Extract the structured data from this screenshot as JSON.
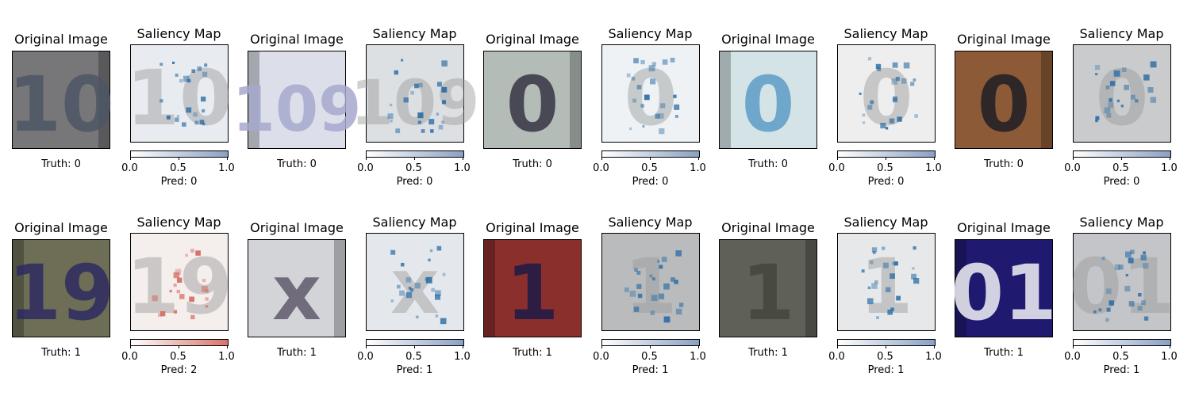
{
  "labels": {
    "original_title": "Original Image",
    "saliency_title": "Saliency Map",
    "truth_prefix": "Truth: ",
    "pred_prefix": "Pred: ",
    "cbar_ticks": [
      "0.0",
      "0.5",
      "1.0"
    ]
  },
  "colors": {
    "blue_cmap_end": "#8aa0c4",
    "red_cmap_end": "#d9736b"
  },
  "rows": [
    {
      "pairs": [
        {
          "truth": "0",
          "pred": "0",
          "digits": "10",
          "bg": "#77777a",
          "fg": "#4d5565",
          "cmap": "blue",
          "sal_bg": "#e8ecf0"
        },
        {
          "truth": "0",
          "pred": "0",
          "digits": "109",
          "bg": "#dcdfea",
          "fg": "#a7a9ce",
          "cmap": "blue",
          "sal_bg": "#dde0e3"
        },
        {
          "truth": "0",
          "pred": "0",
          "digits": "0",
          "bg": "#b4bcb7",
          "fg": "#373646",
          "cmap": "blue",
          "sal_bg": "#eef2f5"
        },
        {
          "truth": "0",
          "pred": "0",
          "digits": "0",
          "bg": "#d4e4e6",
          "fg": "#5e9dc8",
          "cmap": "blue",
          "sal_bg": "#eeeeee"
        },
        {
          "truth": "0",
          "pred": "0",
          "digits": "0",
          "bg": "#8c5a36",
          "fg": "#1f1d26",
          "cmap": "blue",
          "sal_bg": "#c9cbcd"
        }
      ]
    },
    {
      "pairs": [
        {
          "truth": "1",
          "pred": "2",
          "digits": "19",
          "bg": "#6d6e55",
          "fg": "#2e2a63",
          "cmap": "red",
          "sal_bg": "#f4eeec"
        },
        {
          "truth": "1",
          "pred": "1",
          "digits": "x",
          "bg": "#d3d4d8",
          "fg": "#5f5b6d",
          "cmap": "blue",
          "sal_bg": "#e4e8ec"
        },
        {
          "truth": "1",
          "pred": "1",
          "digits": "1",
          "bg": "#8a2f2c",
          "fg": "#1d1a46",
          "cmap": "blue",
          "sal_bg": "#b9bbbd"
        },
        {
          "truth": "1",
          "pred": "1",
          "digits": "1",
          "bg": "#5f6158",
          "fg": "#44463f",
          "cmap": "blue",
          "sal_bg": "#e6e8ea"
        },
        {
          "truth": "1",
          "pred": "1",
          "digits": "01",
          "bg": "#1f1a70",
          "fg": "#f2f2f6",
          "cmap": "blue",
          "sal_bg": "#c3c5c8"
        }
      ]
    }
  ]
}
